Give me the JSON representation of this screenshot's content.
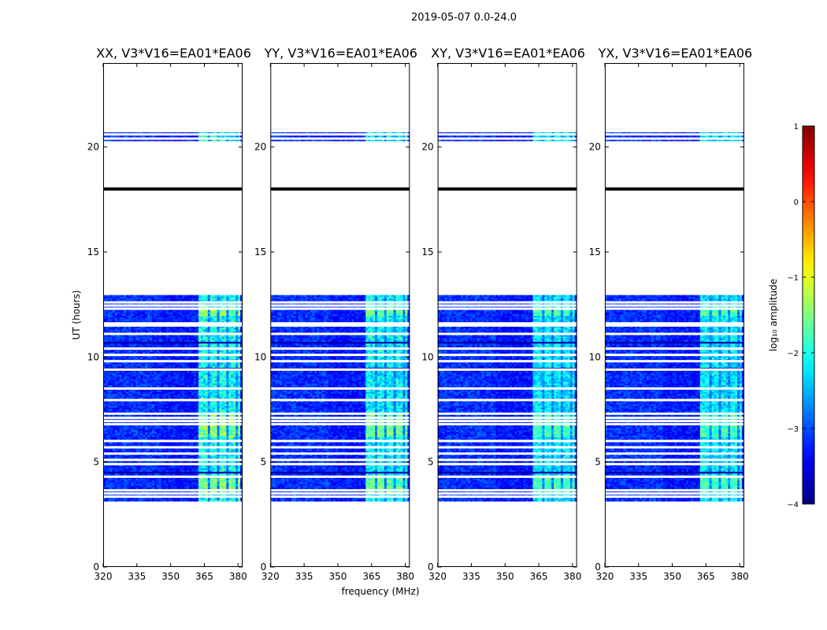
{
  "chart_data": {
    "type": "heatmap",
    "suptitle": "2019-05-07 0.0-24.0",
    "xlabel": "frequency (MHz)",
    "ylabel": "UT (hours)",
    "xlim": [
      320,
      382
    ],
    "ylim": [
      0,
      24
    ],
    "xticks": [
      320,
      335,
      350,
      365,
      380
    ],
    "yticks": [
      0,
      5,
      10,
      15,
      20
    ],
    "panels": [
      {
        "title": "XX, V3*V16=EA01*EA06",
        "rfi_level": 1.0
      },
      {
        "title": "YY, V3*V16=EA01*EA06",
        "rfi_level": 0.9
      },
      {
        "title": "XY, V3*V16=EA01*EA06",
        "rfi_level": 0.75
      },
      {
        "title": "YX, V3*V16=EA01*EA06",
        "rfi_level": 0.75
      }
    ],
    "data_time_ranges_hours": [
      [
        3.2,
        12.95
      ],
      [
        20.3,
        20.7
      ]
    ],
    "flagged_time_rows_hours": [
      3.35,
      3.5,
      3.65,
      4.3,
      4.55,
      4.9,
      5.1,
      5.4,
      5.7,
      6.0,
      6.8,
      6.95,
      7.1,
      7.3,
      7.95,
      8.5,
      9.4,
      9.8,
      10.1,
      10.4,
      10.75,
      11.1,
      11.5,
      11.6,
      12.3,
      12.45,
      12.6,
      20.4,
      20.6
    ],
    "dark_time_rows_hours": [
      4.55,
      9.45,
      10.75
    ],
    "black_line_hour": 18.0,
    "rfi_band_mhz": [
      362,
      382
    ],
    "rfi_channel_gaps_mhz": [
      366.5,
      370.5,
      374.5,
      378.5
    ],
    "colorbar": {
      "label": "log₁₀ amplitude",
      "vmin": -4,
      "vmax": 1,
      "ticks": [
        "−4",
        "−3",
        "−2",
        "−1",
        "0",
        "1"
      ],
      "tick_values": [
        -4,
        -3,
        -2,
        -1,
        0,
        1
      ],
      "colormap": "jet"
    }
  },
  "colors": {
    "frame": "#000000",
    "background": "#ffffff"
  }
}
